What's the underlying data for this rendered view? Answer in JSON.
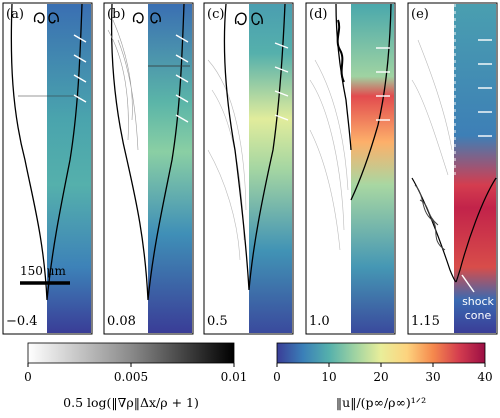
{
  "panels": [
    {
      "tag": "(a)",
      "time": "−0.4"
    },
    {
      "tag": "(b)",
      "time": "0.08"
    },
    {
      "tag": "(c)",
      "time": "0.5"
    },
    {
      "tag": "(d)",
      "time": "1.0"
    },
    {
      "tag": "(e)",
      "time": "1.15"
    }
  ],
  "scale_bar": {
    "label": "150 μm"
  },
  "annotation": {
    "line1": "shock",
    "line2": "cone"
  },
  "colorbar_gray": {
    "ticks": [
      "0",
      "0.005",
      "0.01"
    ],
    "label": "0.5 log(‖∇ρ‖Δx/ρ + 1)",
    "range": [
      0,
      0.01
    ]
  },
  "colorbar_color": {
    "ticks": [
      "0",
      "10",
      "20",
      "30",
      "40"
    ],
    "label": "‖u‖/(p∞/ρ∞)¹ᐟ²",
    "range": [
      0,
      40
    ],
    "colors": [
      "#3a3d97",
      "#3a7fb8",
      "#55b0ac",
      "#9fd3a2",
      "#e9ee9a",
      "#fdd37e",
      "#f5894d",
      "#d43d4f",
      "#9b0e44"
    ]
  }
}
